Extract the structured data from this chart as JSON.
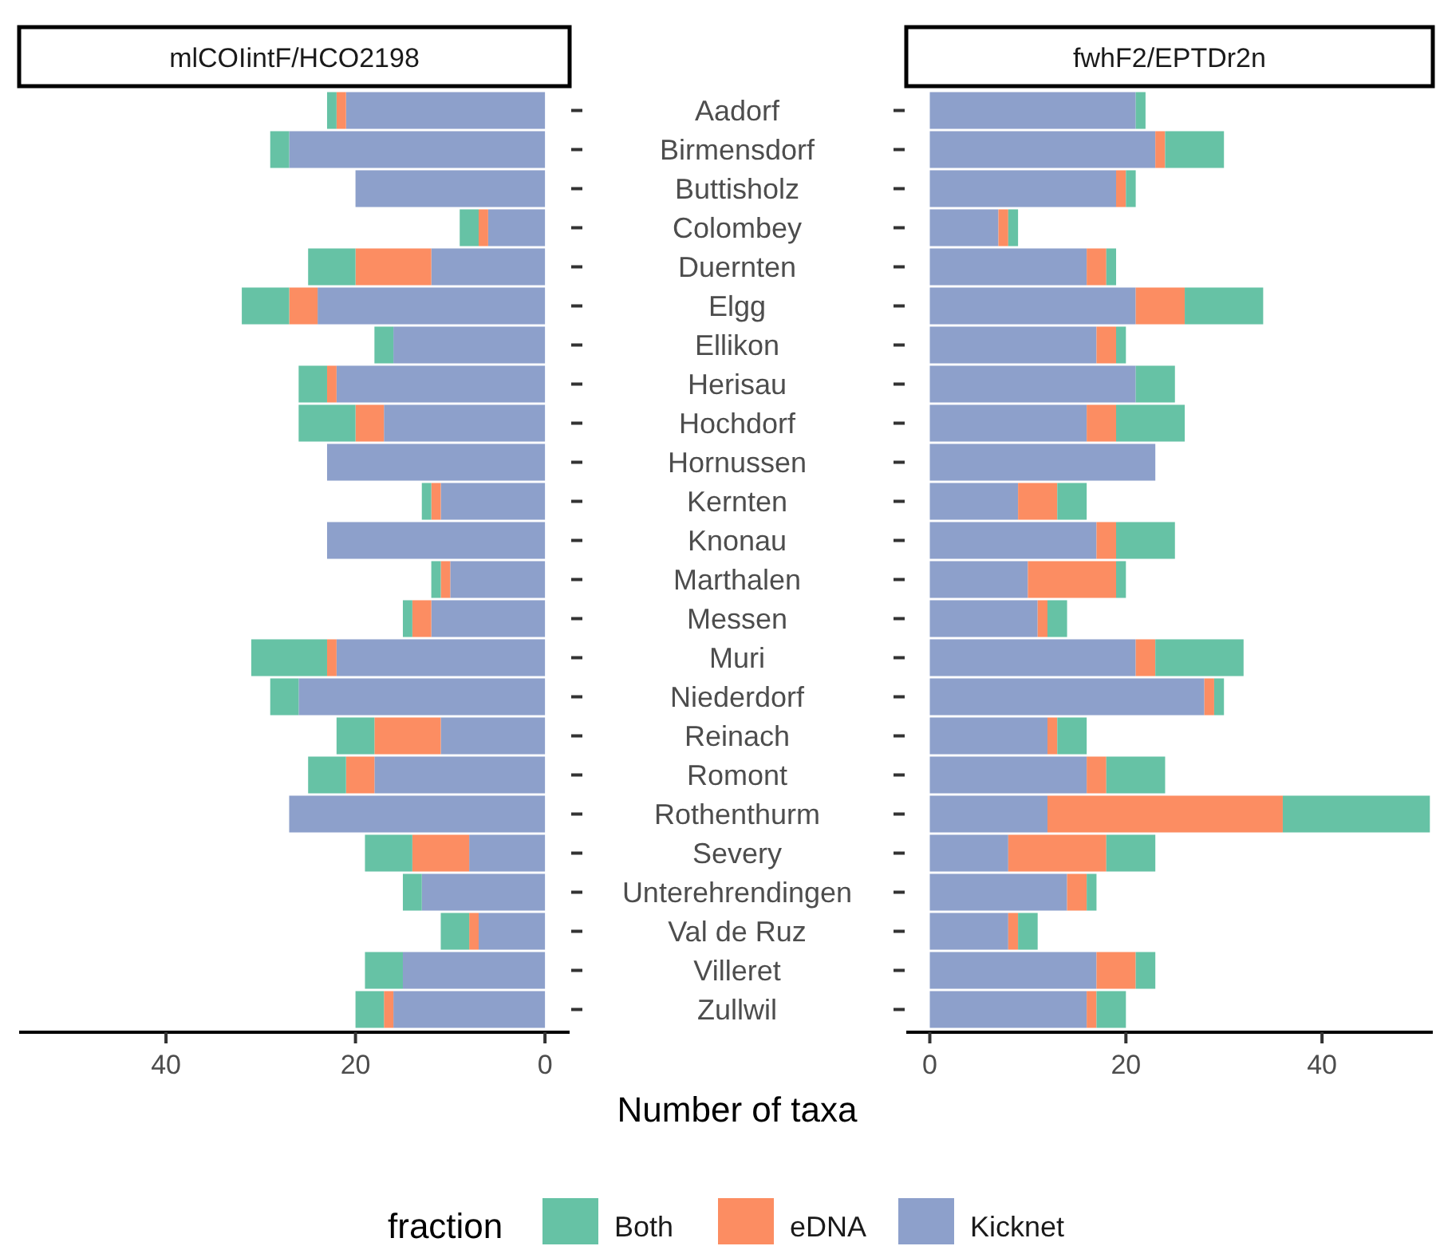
{
  "chart_data": [
    {
      "type": "bar",
      "title": "mlCOIintF/HCO2198",
      "orientation": "horizontal",
      "stacked": true,
      "xlabel": "Number of taxa",
      "legend": "bottom",
      "legend_title": "fraction",
      "grid": false,
      "categories": [
        "Aadorf",
        "Birmensdorf",
        "Buttisholz",
        "Colombey",
        "Duernten",
        "Elgg",
        "Ellikon",
        "Herisau",
        "Hochdorf",
        "Hornussen",
        "Kernten",
        "Knonau",
        "Marthalen",
        "Messen",
        "Muri",
        "Niederdorf",
        "Reinach",
        "Romont",
        "Rothenthurm",
        "Severy",
        "Unterehrendingen",
        "Val de Ruz",
        "Villeret",
        "Zullwil"
      ],
      "xlim": [
        55.5,
        -2.6
      ],
      "xticks": [
        40,
        20,
        0
      ],
      "series": [
        {
          "name": "Kicknet",
          "color": "#8da0cb",
          "values": [
            21,
            27,
            20,
            6,
            12,
            24,
            16,
            22,
            17,
            23,
            11,
            23,
            10,
            12,
            22,
            26,
            11,
            18,
            27,
            8,
            13,
            7,
            15,
            16
          ]
        },
        {
          "name": "eDNA",
          "color": "#fc8d62",
          "values": [
            1,
            0,
            0,
            1,
            8,
            3,
            0,
            1,
            3,
            0,
            1,
            0,
            1,
            2,
            1,
            0,
            7,
            3,
            0,
            6,
            0,
            1,
            0,
            1
          ]
        },
        {
          "name": "Both",
          "color": "#66c2a5",
          "values": [
            1,
            2,
            0,
            2,
            5,
            5,
            2,
            3,
            6,
            0,
            1,
            0,
            1,
            1,
            8,
            3,
            4,
            4,
            0,
            5,
            2,
            3,
            4,
            3
          ]
        }
      ]
    },
    {
      "type": "bar",
      "title": "fwhF2/EPTDr2n",
      "orientation": "horizontal",
      "stacked": true,
      "tick_labels": "x",
      "grid": false,
      "categories": [
        null,
        null,
        null,
        null,
        null,
        null,
        null,
        null,
        null,
        null,
        null,
        null,
        null,
        null,
        null,
        null,
        null,
        null,
        null,
        null,
        null,
        null,
        null,
        null
      ],
      "xlim": [
        -2.4,
        51.3
      ],
      "xticks": [
        0,
        20,
        40
      ],
      "series": [
        {
          "color": "#8da0cb",
          "values": [
            21,
            23,
            19,
            7,
            16,
            21,
            17,
            21,
            16,
            23,
            9,
            17,
            10,
            11,
            21,
            28,
            12,
            16,
            12,
            8,
            14,
            8,
            17,
            16
          ]
        },
        {
          "color": "#fc8d62",
          "values": [
            0,
            1,
            1,
            1,
            2,
            5,
            2,
            0,
            3,
            0,
            4,
            2,
            9,
            1,
            2,
            1,
            1,
            2,
            24,
            10,
            2,
            1,
            4,
            1
          ]
        },
        {
          "color": "#66c2a5",
          "values": [
            1,
            6,
            1,
            1,
            1,
            8,
            1,
            4,
            7,
            0,
            3,
            6,
            1,
            2,
            9,
            1,
            3,
            6,
            15,
            5,
            1,
            2,
            2,
            3
          ]
        }
      ]
    }
  ]
}
